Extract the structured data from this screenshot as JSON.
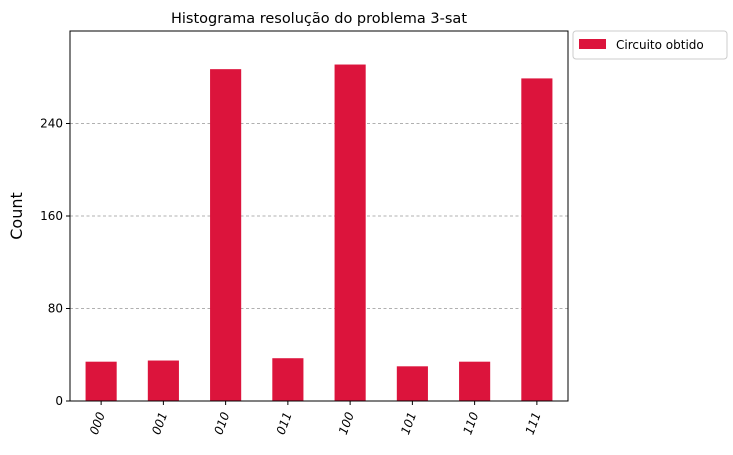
{
  "chart_data": {
    "type": "bar",
    "title": "Histograma resolução do problema 3-sat",
    "xlabel": "",
    "ylabel": "Count",
    "categories": [
      "000",
      "001",
      "010",
      "011",
      "100",
      "101",
      "110",
      "111"
    ],
    "series": [
      {
        "name": "Circuito obtido",
        "color": "#DC143C",
        "values": [
          34,
          35,
          287,
          37,
          291,
          30,
          34,
          279
        ]
      }
    ],
    "yticks": [
      0,
      80,
      160,
      240
    ],
    "ylim": [
      0,
      320
    ],
    "grid": "horizontal dashed",
    "legend_position": "outside-upper-right"
  }
}
